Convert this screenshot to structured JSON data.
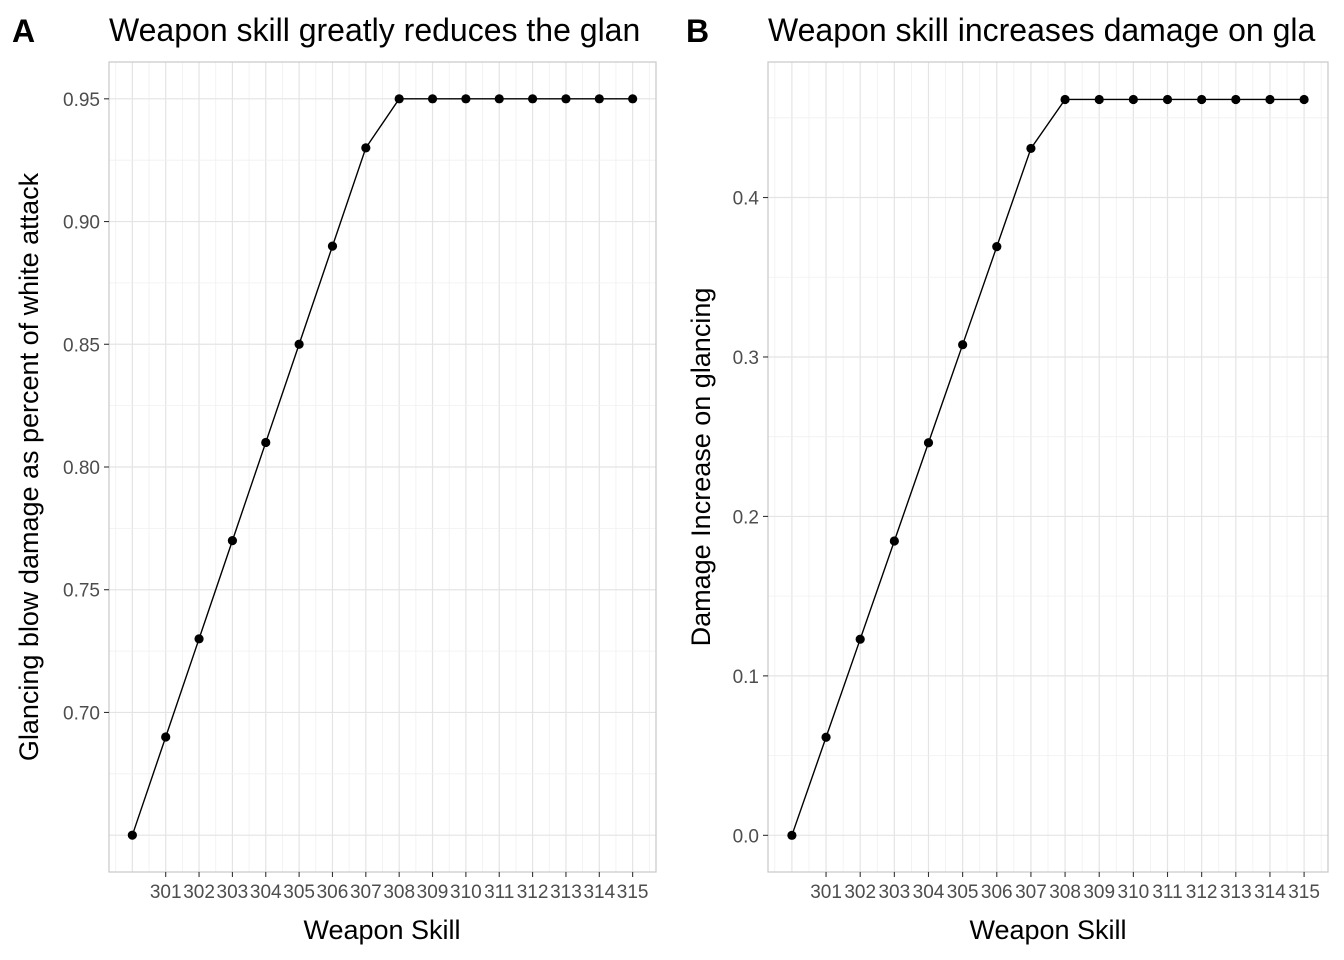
{
  "chart_data": [
    {
      "type": "line",
      "panel_label": "A",
      "title": "Weapon skill greatly reduces the glan",
      "xlabel": "Weapon Skill",
      "ylabel": "Glancing blow damage as percent of white attack",
      "x": [
        300,
        301,
        302,
        303,
        304,
        305,
        306,
        307,
        308,
        309,
        310,
        311,
        312,
        313,
        314,
        315
      ],
      "values": [
        0.65,
        0.69,
        0.73,
        0.77,
        0.81,
        0.85,
        0.89,
        0.93,
        0.95,
        0.95,
        0.95,
        0.95,
        0.95,
        0.95,
        0.95,
        0.95
      ],
      "x_ticks": [
        "301",
        "302",
        "303",
        "304",
        "305",
        "306",
        "307",
        "308",
        "309",
        "310",
        "311",
        "312",
        "313",
        "314",
        "315"
      ],
      "y_ticks": [
        "0.70",
        "0.75",
        "0.80",
        "0.85",
        "0.90",
        "0.95"
      ],
      "xlim": [
        299.3,
        315.7
      ],
      "ylim": [
        0.635,
        0.965
      ],
      "grid": true,
      "legend": "none"
    },
    {
      "type": "line",
      "panel_label": "B",
      "title": "Weapon skill increases damage on gla",
      "xlabel": "Weapon Skill",
      "ylabel": "Damage Increase on glancing",
      "x": [
        300,
        301,
        302,
        303,
        304,
        305,
        306,
        307,
        308,
        309,
        310,
        311,
        312,
        313,
        314,
        315
      ],
      "values": [
        0.0,
        0.0615,
        0.123,
        0.1846,
        0.2462,
        0.3077,
        0.3692,
        0.4308,
        0.4615,
        0.4615,
        0.4615,
        0.4615,
        0.4615,
        0.4615,
        0.4615,
        0.4615
      ],
      "x_ticks": [
        "301",
        "302",
        "303",
        "304",
        "305",
        "306",
        "307",
        "308",
        "309",
        "310",
        "311",
        "312",
        "313",
        "314",
        "315"
      ],
      "y_ticks": [
        "0.0",
        "0.1",
        "0.2",
        "0.3",
        "0.4"
      ],
      "xlim": [
        299.3,
        315.7
      ],
      "ylim": [
        -0.023,
        0.485
      ],
      "grid": true,
      "legend": "none"
    }
  ]
}
